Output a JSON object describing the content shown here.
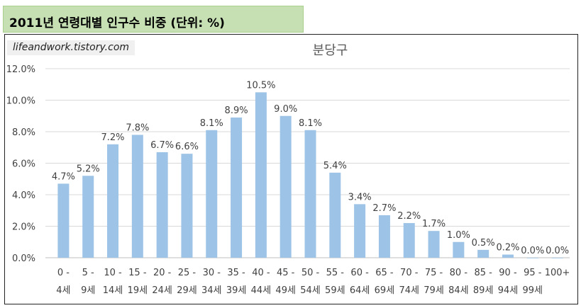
{
  "header": {
    "title": "2011년 연령대별 인구수 비중 (단위: %)"
  },
  "watermark": "lifeandwork.tistory.com",
  "colors": {
    "bar": "#9dc3e6",
    "header_bg": "#c6e0b4",
    "grid": "#d9d9d9",
    "axis_text": "#404040"
  },
  "chart_data": {
    "type": "bar",
    "title": "분당구",
    "categories": [
      [
        "0 -",
        "4세"
      ],
      [
        "5 -",
        "9세"
      ],
      [
        "10 -",
        "14세"
      ],
      [
        "15 -",
        "19세"
      ],
      [
        "20 -",
        "24세"
      ],
      [
        "25 -",
        "29세"
      ],
      [
        "30 -",
        "34세"
      ],
      [
        "35 -",
        "39세"
      ],
      [
        "40 -",
        "44세"
      ],
      [
        "45 -",
        "49세"
      ],
      [
        "50 -",
        "54세"
      ],
      [
        "55 -",
        "59세"
      ],
      [
        "60 -",
        "64세"
      ],
      [
        "65 -",
        "69세"
      ],
      [
        "70 -",
        "74세"
      ],
      [
        "75 -",
        "79세"
      ],
      [
        "80 -",
        "84세"
      ],
      [
        "85 -",
        "89세"
      ],
      [
        "90 -",
        "94세"
      ],
      [
        "95 -",
        "99세"
      ],
      [
        "100+",
        ""
      ]
    ],
    "values": [
      4.7,
      5.2,
      7.2,
      7.8,
      6.7,
      6.6,
      8.1,
      8.9,
      10.5,
      9.0,
      8.1,
      5.4,
      3.4,
      2.7,
      2.2,
      1.7,
      1.0,
      0.5,
      0.2,
      0.0,
      0.0
    ],
    "data_labels": [
      "4.7%",
      "5.2%",
      "7.2%",
      "7.8%",
      "6.7%",
      "6.6%",
      "8.1%",
      "8.9%",
      "10.5%",
      "9.0%",
      "8.1%",
      "5.4%",
      "3.4%",
      "2.7%",
      "2.2%",
      "1.7%",
      "1.0%",
      "0.5%",
      "0.2%",
      "0.0%",
      "0.0%"
    ],
    "yticks": [
      "0.0%",
      "2.0%",
      "4.0%",
      "6.0%",
      "8.0%",
      "10.0%",
      "12.0%"
    ],
    "ylim": [
      0,
      12
    ],
    "grid": true,
    "legend": "none"
  }
}
